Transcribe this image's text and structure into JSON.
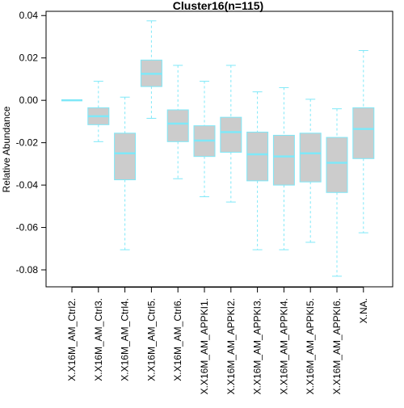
{
  "chart_data": {
    "type": "box",
    "title": "Cluster16(n=115)",
    "ylabel": "Relative Abundance",
    "xlabel": "",
    "ylim": [
      -0.088,
      0.042
    ],
    "yticks": [
      "0.04",
      "0.02",
      "0.00",
      "-0.02",
      "-0.04",
      "-0.06",
      "-0.08"
    ],
    "ytick_values": [
      0.04,
      0.02,
      0.0,
      -0.02,
      -0.04,
      -0.06,
      -0.08
    ],
    "categories": [
      "X.X16M_AM_Ctrl2.",
      "X.X16M_AM_Ctrl3.",
      "X.X16M_AM_Ctrl4.",
      "X.X16M_AM_Ctrl5.",
      "X.X16M_AM_Ctrl6.",
      "X.X16M_AM_APPKI1.",
      "X.X16M_AM_APPKI2.",
      "X.X16M_AM_APPKI3.",
      "X.X16M_AM_APPKI4.",
      "X.X16M_AM_APPKI5.",
      "X.X16M_AM_APPKI6.",
      "X.NA."
    ],
    "boxes": [
      {
        "min": 0.0,
        "q1": 0.0,
        "median": 0.0,
        "q3": 0.0,
        "max": 0.0
      },
      {
        "min": -0.0195,
        "q1": -0.0115,
        "median": -0.0075,
        "q3": -0.0035,
        "max": 0.009
      },
      {
        "min": -0.0705,
        "q1": -0.0375,
        "median": -0.025,
        "q3": -0.0155,
        "max": 0.0015
      },
      {
        "min": -0.0085,
        "q1": 0.0065,
        "median": 0.0125,
        "q3": 0.019,
        "max": 0.0375
      },
      {
        "min": -0.037,
        "q1": -0.0195,
        "median": -0.011,
        "q3": -0.0045,
        "max": 0.0165
      },
      {
        "min": -0.0455,
        "q1": -0.0265,
        "median": -0.019,
        "q3": -0.012,
        "max": 0.009
      },
      {
        "min": -0.048,
        "q1": -0.0245,
        "median": -0.015,
        "q3": -0.008,
        "max": 0.0165
      },
      {
        "min": -0.0705,
        "q1": -0.038,
        "median": -0.0255,
        "q3": -0.015,
        "max": 0.004
      },
      {
        "min": -0.0705,
        "q1": -0.04,
        "median": -0.0265,
        "q3": -0.0165,
        "max": 0.006
      },
      {
        "min": -0.067,
        "q1": -0.0385,
        "median": -0.025,
        "q3": -0.0155,
        "max": 0.0005
      },
      {
        "min": -0.083,
        "q1": -0.0435,
        "median": -0.0295,
        "q3": -0.0175,
        "max": -0.004
      },
      {
        "min": -0.0625,
        "q1": -0.0275,
        "median": -0.0135,
        "q3": -0.0035,
        "max": 0.0235
      }
    ],
    "colors": {
      "box_fill": "#cccccc",
      "line": "#7fe8f8",
      "median": "#7fe8f8",
      "axis": "#000000"
    },
    "grid": false,
    "legend": "none"
  }
}
